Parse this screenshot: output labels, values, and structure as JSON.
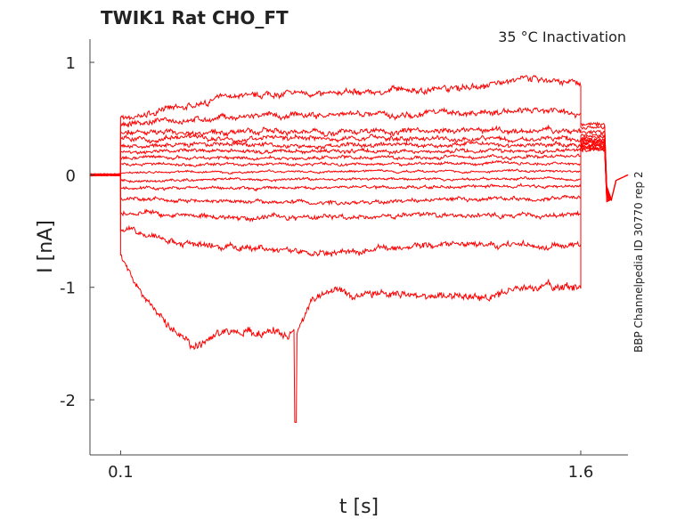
{
  "chart_data": {
    "type": "line",
    "title": "TWIK1  Rat  CHO_FT",
    "subtitle": "35 °C  Inactivation",
    "side_label": "BBP Channelpedia ID 30770 rep 2",
    "xlabel": "t [s]",
    "ylabel": "I [nA]",
    "xlim": [
      0,
      1.754
    ],
    "ylim": [
      -2.49,
      1.206
    ],
    "xticks": [
      {
        "v": 0.1,
        "label": "0.1"
      },
      {
        "v": 1.6,
        "label": "1.6"
      }
    ],
    "yticks": [
      {
        "v": 1,
        "label": "1"
      },
      {
        "v": 0,
        "label": "0"
      },
      {
        "v": -1,
        "label": "-1"
      },
      {
        "v": -2,
        "label": "-2"
      }
    ],
    "grid": false,
    "color": "#ff0000",
    "series": [
      {
        "name": "trace-1",
        "points": [
          [
            0.1,
            0.5
          ],
          [
            0.3,
            0.6
          ],
          [
            0.5,
            0.72
          ],
          [
            0.8,
            0.73
          ],
          [
            1.1,
            0.76
          ],
          [
            1.3,
            0.8
          ],
          [
            1.45,
            0.86
          ],
          [
            1.6,
            0.8
          ]
        ],
        "tail": 0.45
      },
      {
        "name": "trace-2",
        "points": [
          [
            0.1,
            0.45
          ],
          [
            0.4,
            0.5
          ],
          [
            0.8,
            0.53
          ],
          [
            1.2,
            0.56
          ],
          [
            1.6,
            0.55
          ]
        ],
        "tail": 0.42
      },
      {
        "name": "trace-3",
        "points": [
          [
            0.1,
            0.38
          ],
          [
            0.8,
            0.39
          ],
          [
            1.6,
            0.39
          ]
        ],
        "tail": 0.38
      },
      {
        "name": "trace-4",
        "points": [
          [
            0.1,
            0.32
          ],
          [
            1.6,
            0.32
          ]
        ],
        "tail": 0.35
      },
      {
        "name": "trace-5",
        "points": [
          [
            0.1,
            0.26
          ],
          [
            1.6,
            0.27
          ]
        ],
        "tail": 0.33
      },
      {
        "name": "trace-6",
        "points": [
          [
            0.1,
            0.21
          ],
          [
            1.6,
            0.21
          ]
        ],
        "tail": 0.31
      },
      {
        "name": "trace-7",
        "points": [
          [
            0.1,
            0.15
          ],
          [
            1.6,
            0.16
          ]
        ],
        "tail": 0.3
      },
      {
        "name": "trace-8",
        "points": [
          [
            0.1,
            0.09
          ],
          [
            1.6,
            0.1
          ]
        ],
        "tail": 0.29
      },
      {
        "name": "trace-9",
        "points": [
          [
            0.1,
            0.02
          ],
          [
            1.6,
            0.04
          ]
        ],
        "tail": 0.28
      },
      {
        "name": "trace-10",
        "points": [
          [
            0.1,
            -0.05
          ],
          [
            1.6,
            -0.03
          ]
        ],
        "tail": 0.27
      },
      {
        "name": "trace-11",
        "points": [
          [
            0.1,
            -0.12
          ],
          [
            1.6,
            -0.1
          ]
        ],
        "tail": 0.26
      },
      {
        "name": "trace-12",
        "points": [
          [
            0.1,
            -0.22
          ],
          [
            0.8,
            -0.25
          ],
          [
            1.6,
            -0.2
          ]
        ],
        "tail": 0.25
      },
      {
        "name": "trace-13",
        "points": [
          [
            0.1,
            -0.33
          ],
          [
            0.5,
            -0.38
          ],
          [
            1.0,
            -0.37
          ],
          [
            1.6,
            -0.35
          ]
        ],
        "tail": 0.24
      },
      {
        "name": "trace-14",
        "points": [
          [
            0.1,
            -0.5
          ],
          [
            0.3,
            -0.6
          ],
          [
            0.6,
            -0.65
          ],
          [
            0.8,
            -0.7
          ],
          [
            1.2,
            -0.62
          ],
          [
            1.6,
            -0.62
          ]
        ],
        "tail": 0.23
      },
      {
        "name": "trace-15",
        "points": [
          [
            0.1,
            -0.7
          ],
          [
            0.15,
            -0.95
          ],
          [
            0.25,
            -1.35
          ],
          [
            0.35,
            -1.52
          ],
          [
            0.45,
            -1.4
          ],
          [
            0.6,
            -1.42
          ],
          [
            0.68,
            -1.4
          ],
          [
            0.72,
            -1.1
          ],
          [
            0.8,
            -1.03
          ],
          [
            1.0,
            -1.07
          ],
          [
            1.2,
            -1.1
          ],
          [
            1.4,
            -1.03
          ],
          [
            1.6,
            -1.0
          ]
        ],
        "tail": 0.22,
        "spike": [
          0.67,
          -2.2
        ]
      }
    ]
  }
}
